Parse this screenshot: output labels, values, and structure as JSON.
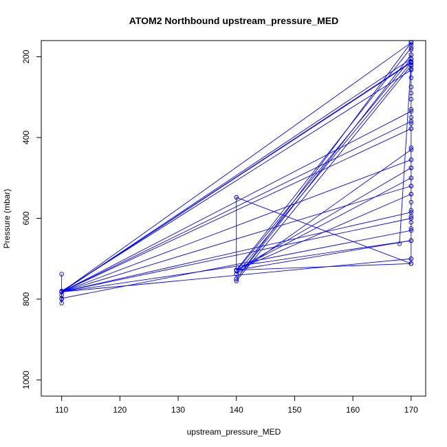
{
  "chart_data": {
    "type": "line",
    "title": "ATOM2 Northbound upstream_pressure_MED",
    "xlabel": "upstream_pressure_MED",
    "ylabel": "Pressure (mbar)",
    "xlim": [
      106.5,
      172.5
    ],
    "ylim": [
      1040,
      160
    ],
    "y_reversed": true,
    "x_ticks": [
      110,
      120,
      130,
      140,
      150,
      160,
      170
    ],
    "y_ticks": [
      200,
      400,
      600,
      800,
      1000
    ],
    "grid": false,
    "legend": "none",
    "series_color": "#0000ff",
    "marker": "open-circle",
    "series": [
      {
        "x": [
          110,
          110,
          170
        ],
        "y": [
          738,
          780,
          233
        ]
      },
      {
        "x": [
          110,
          110,
          170
        ],
        "y": [
          790,
          782,
          205
        ]
      },
      {
        "x": [
          110,
          110,
          170
        ],
        "y": [
          800,
          782,
          215
        ]
      },
      {
        "x": [
          110,
          110,
          170
        ],
        "y": [
          810,
          782,
          335
        ]
      },
      {
        "x": [
          110,
          170
        ],
        "y": [
          782,
          213
        ]
      },
      {
        "x": [
          110,
          170
        ],
        "y": [
          782,
          360
        ]
      },
      {
        "x": [
          110,
          170
        ],
        "y": [
          782,
          378
        ]
      },
      {
        "x": [
          110,
          170
        ],
        "y": [
          782,
          455
        ]
      },
      {
        "x": [
          110,
          170
        ],
        "y": [
          782,
          520
        ]
      },
      {
        "x": [
          110,
          170
        ],
        "y": [
          782,
          585
        ]
      },
      {
        "x": [
          110,
          170
        ],
        "y": [
          782,
          600
        ]
      },
      {
        "x": [
          110,
          170
        ],
        "y": [
          782,
          165
        ]
      },
      {
        "x": [
          110,
          170
        ],
        "y": [
          782,
          700
        ]
      },
      {
        "x": [
          110,
          170
        ],
        "y": [
          782,
          655
        ]
      },
      {
        "x": [
          110,
          110,
          170
        ],
        "y": [
          782,
          798,
          630
        ]
      },
      {
        "x": [
          140,
          140,
          170
        ],
        "y": [
          548,
          728,
          712
        ]
      },
      {
        "x": [
          140,
          170
        ],
        "y": [
          548,
          712
        ]
      },
      {
        "x": [
          140,
          170
        ],
        "y": [
          730,
          205
        ]
      },
      {
        "x": [
          140,
          170
        ],
        "y": [
          738,
          215
        ]
      },
      {
        "x": [
          140,
          170
        ],
        "y": [
          750,
          165
        ]
      },
      {
        "x": [
          140,
          170
        ],
        "y": [
          750,
          195
        ]
      },
      {
        "x": [
          140,
          170
        ],
        "y": [
          755,
          222
        ]
      },
      {
        "x": [
          140,
          170
        ],
        "y": [
          728,
          178
        ]
      },
      {
        "x": [
          140,
          170
        ],
        "y": [
          728,
          475
        ]
      },
      {
        "x": [
          140,
          170
        ],
        "y": [
          738,
          430
        ]
      },
      {
        "x": [
          140,
          170
        ],
        "y": [
          728,
          500
        ]
      },
      {
        "x": [
          140,
          170
        ],
        "y": [
          728,
          540
        ]
      },
      {
        "x": [
          140,
          170
        ],
        "y": [
          728,
          655
        ]
      },
      {
        "x": [
          168,
          170
        ],
        "y": [
          663,
          215
        ]
      },
      {
        "x": [
          170,
          170,
          170,
          170,
          170,
          170,
          170,
          170,
          170,
          170,
          170,
          170,
          170,
          170,
          170,
          170,
          170,
          170,
          170,
          170,
          170,
          170,
          170,
          170,
          170,
          170,
          170,
          170,
          170,
          170
        ],
        "y": [
          163,
          170,
          182,
          195,
          205,
          212,
          220,
          230,
          252,
          275,
          290,
          305,
          330,
          350,
          365,
          378,
          425,
          455,
          475,
          500,
          520,
          540,
          560,
          580,
          595,
          610,
          625,
          655,
          700,
          712
        ]
      }
    ]
  }
}
